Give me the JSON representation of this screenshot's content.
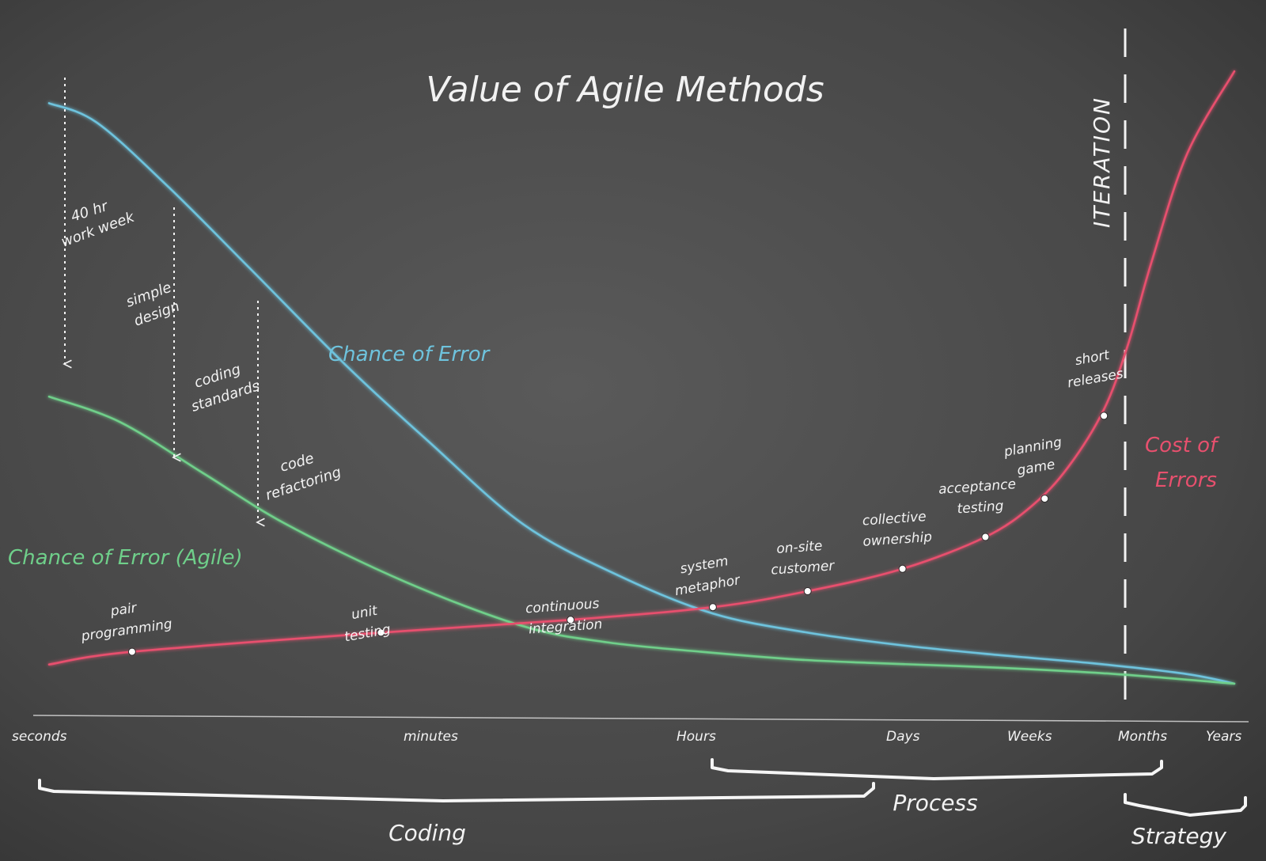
{
  "chart_data": {
    "type": "line",
    "title": "Value of Agile Methods",
    "x_scale": "log (time)",
    "x_ticks": [
      "seconds",
      "minutes",
      "Hours",
      "Days",
      "Weeks",
      "Months",
      "Years"
    ],
    "series": [
      {
        "name": "Chance of Error",
        "color": "#6ec3dd",
        "points": [
          [
            0.0,
            0.93
          ],
          [
            0.04,
            0.9
          ],
          [
            0.1,
            0.8
          ],
          [
            0.17,
            0.67
          ],
          [
            0.25,
            0.52
          ],
          [
            0.32,
            0.4
          ],
          [
            0.4,
            0.27
          ],
          [
            0.48,
            0.19
          ],
          [
            0.56,
            0.13
          ],
          [
            0.64,
            0.1
          ],
          [
            0.72,
            0.08
          ],
          [
            0.8,
            0.065
          ],
          [
            0.88,
            0.052
          ],
          [
            0.96,
            0.035
          ],
          [
            1.0,
            0.02
          ]
        ]
      },
      {
        "name": "Chance of Error (Agile)",
        "color": "#6fcf8a",
        "points": [
          [
            0.0,
            0.47
          ],
          [
            0.06,
            0.43
          ],
          [
            0.13,
            0.35
          ],
          [
            0.2,
            0.27
          ],
          [
            0.3,
            0.18
          ],
          [
            0.4,
            0.11
          ],
          [
            0.47,
            0.085
          ],
          [
            0.55,
            0.07
          ],
          [
            0.63,
            0.058
          ],
          [
            0.7,
            0.052
          ],
          [
            0.8,
            0.045
          ],
          [
            0.9,
            0.035
          ],
          [
            1.0,
            0.02
          ]
        ]
      },
      {
        "name": "Cost of Errors",
        "color": "#e8506e",
        "points": [
          [
            0.0,
            0.05
          ],
          [
            0.07,
            0.07
          ],
          [
            0.28,
            0.1
          ],
          [
            0.44,
            0.12
          ],
          [
            0.56,
            0.14
          ],
          [
            0.64,
            0.165
          ],
          [
            0.72,
            0.2
          ],
          [
            0.79,
            0.25
          ],
          [
            0.83,
            0.3
          ],
          [
            0.86,
            0.36
          ],
          [
            0.89,
            0.45
          ],
          [
            0.91,
            0.55
          ],
          [
            0.93,
            0.68
          ],
          [
            0.96,
            0.85
          ],
          [
            1.0,
            0.98
          ]
        ]
      }
    ],
    "series_labels": {
      "chance_of_error": "Chance of Error",
      "chance_of_error_agile": "Chance of Error (Agile)",
      "cost_of_errors_line1": "Cost of",
      "cost_of_errors_line2": "Errors"
    },
    "practices_on_cost_curve": [
      {
        "label1": "pair",
        "label2": "programming",
        "x": 0.07,
        "y": 0.07
      },
      {
        "label1": "unit",
        "label2": "testing",
        "x": 0.28,
        "y": 0.1
      },
      {
        "label1": "continuous",
        "label2": "integration",
        "x": 0.44,
        "y": 0.12
      },
      {
        "label1": "system",
        "label2": "metaphor",
        "x": 0.56,
        "y": 0.14
      },
      {
        "label1": "on-site",
        "label2": "customer",
        "x": 0.64,
        "y": 0.165
      },
      {
        "label1": "collective",
        "label2": "ownership",
        "x": 0.72,
        "y": 0.2
      },
      {
        "label1": "acceptance",
        "label2": "testing",
        "x": 0.79,
        "y": 0.25
      },
      {
        "label1": "planning",
        "label2": "game",
        "x": 0.84,
        "y": 0.31
      },
      {
        "label1": "short",
        "label2": "releases",
        "x": 0.89,
        "y": 0.44
      }
    ],
    "practices_on_chance_curve": [
      {
        "label1": "40 hr",
        "label2": "work week"
      },
      {
        "label1": "simple",
        "label2": "design"
      },
      {
        "label1": "coding",
        "label2": "standards"
      },
      {
        "label1": "code",
        "label2": "refactoring"
      }
    ],
    "iteration_marker": {
      "label": "ITERATION",
      "x": 0.91
    },
    "brackets": [
      {
        "label": "Coding"
      },
      {
        "label": "Process"
      },
      {
        "label": "Strategy"
      }
    ],
    "grid": false,
    "legend": "none (inline labels)"
  },
  "colors": {
    "board": "#4a4a4a",
    "chalk": "#f2f2f2",
    "blue": "#6ec3dd",
    "green": "#6fcf8a",
    "red": "#e8506e"
  }
}
